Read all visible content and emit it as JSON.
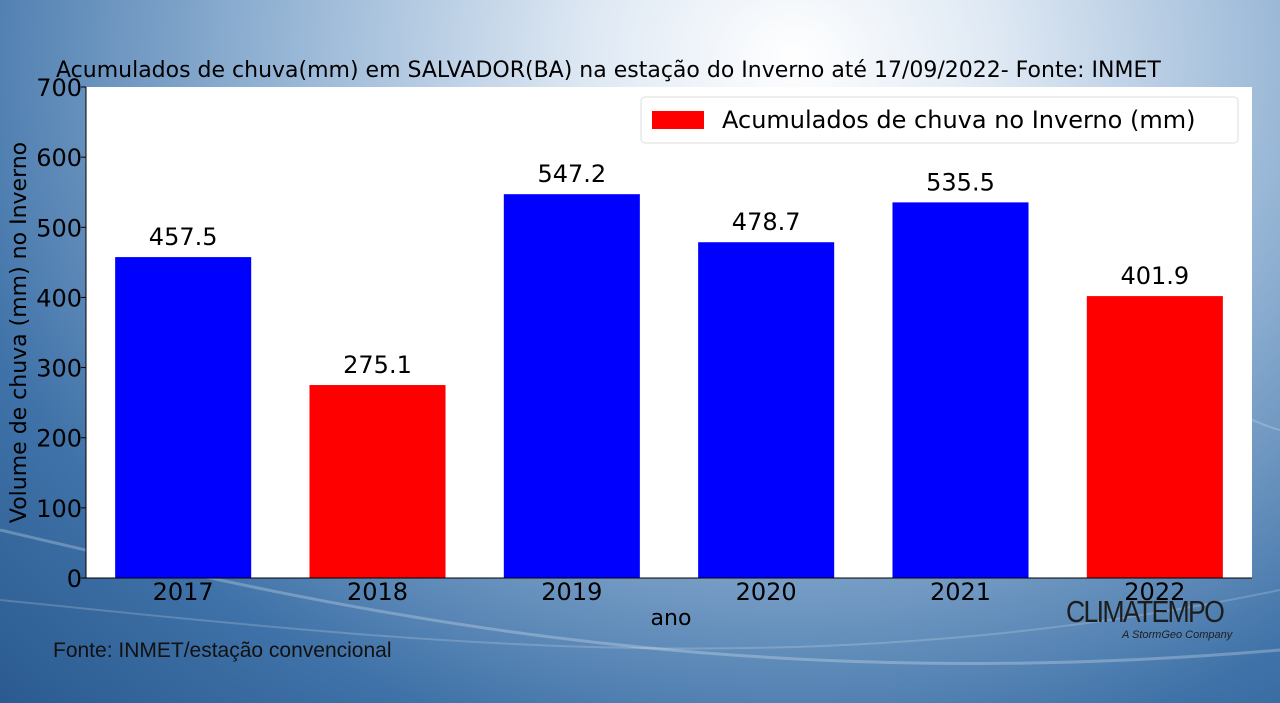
{
  "colors": {
    "blue": "#0000ff",
    "red": "#ff0000",
    "plot_bg": "#ffffff"
  },
  "chart_data": {
    "type": "bar",
    "title": "Acumulados de chuva(mm) em SALVADOR(BA) na estação do Inverno até 17/09/2022- Fonte: INMET",
    "xlabel": "ano",
    "ylabel": "Volume de chuva (mm) no Inverno",
    "categories": [
      "2017",
      "2018",
      "2019",
      "2020",
      "2021",
      "2022"
    ],
    "values": [
      457.5,
      275.1,
      547.2,
      478.7,
      535.5,
      401.9
    ],
    "data_labels": [
      "457.5",
      "275.1",
      "547.2",
      "478.7",
      "535.5",
      "401.9"
    ],
    "bar_colors": [
      "#0000ff",
      "#ff0000",
      "#0000ff",
      "#0000ff",
      "#0000ff",
      "#ff0000"
    ],
    "ylim": [
      0,
      700
    ],
    "yticks": [
      0,
      100,
      200,
      300,
      400,
      500,
      600,
      700
    ],
    "legend": {
      "placement": "top-right",
      "entries": [
        {
          "label": "Acumulados de chuva no Inverno (mm)",
          "color": "#ff0000"
        }
      ]
    },
    "grid": false
  },
  "footer": {
    "source_note": "Fonte: INMET/estação convencional"
  },
  "brand": {
    "name": "CLIMATEMPO",
    "tagline": "A StormGeo Company"
  }
}
